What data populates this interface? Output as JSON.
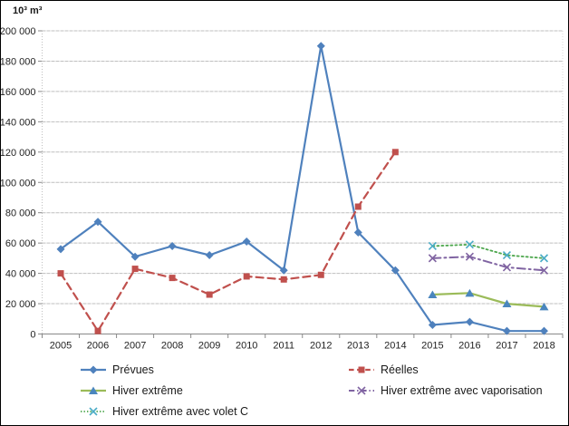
{
  "chart_data": {
    "type": "line",
    "title": "",
    "ylabel": "10³ m³",
    "xlabel": "",
    "ylim": [
      0,
      200000
    ],
    "ystep": 20000,
    "grid": true,
    "legend_position": "bottom",
    "categories": [
      "2005",
      "2006",
      "2007",
      "2008",
      "2009",
      "2010",
      "2011",
      "2012",
      "2013",
      "2014",
      "2015",
      "2016",
      "2017",
      "2018"
    ],
    "series": [
      {
        "name": "Prévues",
        "color": "#4f81bd",
        "marker_color": "#4f81bd",
        "line_style": "solid",
        "marker": "diamond",
        "values": [
          56000,
          74000,
          51000,
          58000,
          52000,
          61000,
          42000,
          190000,
          67000,
          42000,
          6000,
          8000,
          2000,
          2000
        ]
      },
      {
        "name": "Réelles",
        "color": "#c0504d",
        "marker_color": "#c0504d",
        "line_style": "dashed",
        "marker": "square",
        "values": [
          40000,
          2000,
          43000,
          37000,
          26000,
          38000,
          36000,
          39000,
          84000,
          120000,
          null,
          null,
          null,
          null
        ]
      },
      {
        "name": "Hiver extrême",
        "color": "#9bbb59",
        "marker_color": "#4a86be",
        "line_style": "solid",
        "marker": "triangle",
        "values": [
          null,
          null,
          null,
          null,
          null,
          null,
          null,
          null,
          null,
          null,
          26000,
          27000,
          20000,
          18000
        ]
      },
      {
        "name": "Hiver extrême avec vaporisation",
        "color": "#8064a2",
        "marker_color": "#8064a2",
        "line_style": "dashdot",
        "marker": "x",
        "values": [
          null,
          null,
          null,
          null,
          null,
          null,
          null,
          null,
          null,
          null,
          50000,
          51000,
          44000,
          42000
        ]
      },
      {
        "name": "Hiver extrême avec volet C",
        "color": "#4ca64c",
        "marker_color": "#4bacc6",
        "line_style": "dotted",
        "marker": "x",
        "values": [
          null,
          null,
          null,
          null,
          null,
          null,
          null,
          null,
          null,
          null,
          58000,
          59000,
          52000,
          50000
        ]
      }
    ],
    "legend_columns": [
      [
        0,
        2,
        4
      ],
      [
        1,
        3
      ]
    ],
    "colors": {
      "gridline": "#bfbfbf",
      "axis": "#898989",
      "plot_right_edge": "#d9d9d9",
      "tick_text": "#1f1f1f"
    }
  }
}
